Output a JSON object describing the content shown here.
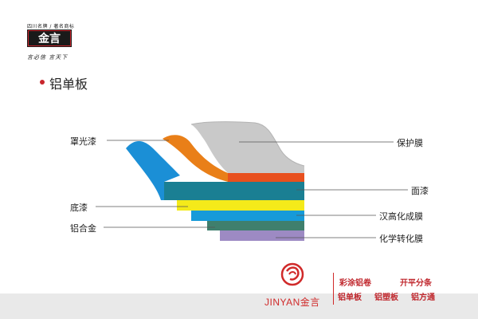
{
  "header": {
    "tagline": "四川名牌 / 著名商标",
    "logo_text": "金言",
    "slogan": "言必信 言天下"
  },
  "section": {
    "title": "铝单板"
  },
  "diagram": {
    "colors": {
      "protective_film": "#c9c9c9",
      "gloss_top": "#e97f18",
      "gloss_blue": "#1b8fd6",
      "topcoat_red": "#e8501e",
      "topcoat_teal": "#1a7f93",
      "primer_yellow": "#f4ea1a",
      "blue_layer": "#169ad9",
      "alloy": "#3f7f6d",
      "chemical_film": "#9d8ac3"
    },
    "labels_left": {
      "gloss_paint": "罩光漆",
      "primer": "底漆",
      "aluminum_alloy": "铝合金"
    },
    "labels_right": {
      "protective_film": "保护膜",
      "topcoat": "面漆",
      "chinese_film": "汉高化成膜",
      "chemical_conversion": "化学转化膜"
    }
  },
  "footer": {
    "brand_name": "JINYAN金言",
    "products_row1": [
      "彩涂铝卷",
      "开平分条"
    ],
    "products_row2": [
      "铝单板",
      "铝塑板",
      "铝方通"
    ],
    "brand_color": "#d02a2a"
  }
}
